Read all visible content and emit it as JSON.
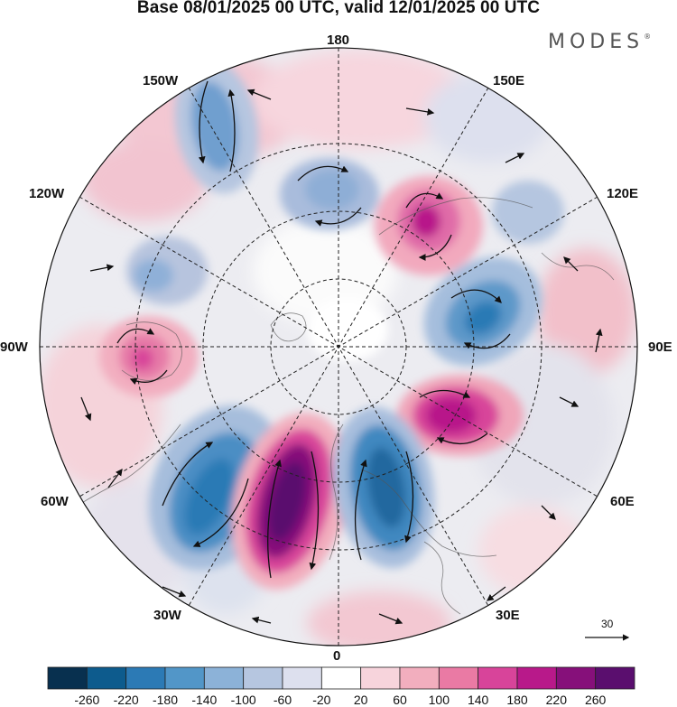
{
  "title": "Base 08/01/2025 00 UTC, valid 12/01/2025 00 UTC",
  "brand": {
    "name": "MODES",
    "mark": "®"
  },
  "map_labels": {
    "north": "180",
    "south": "0",
    "east": "90E",
    "west": "90W",
    "ne_upper": "150E",
    "ne_lower": "120E",
    "nw_upper": "150W",
    "nw_lower": "120W",
    "se_upper": "60E",
    "se_lower": "30E",
    "sw_upper": "60W",
    "sw_lower": "30W"
  },
  "reference_vector": {
    "label": "30"
  },
  "colorbar": {
    "labels": [
      "-260",
      "-220",
      "-180",
      "-140",
      "-100",
      "-60",
      "-20",
      "20",
      "60",
      "100",
      "140",
      "180",
      "220",
      "260"
    ],
    "colors": [
      "#08304f",
      "#0d5b8d",
      "#2c7ab5",
      "#5296c8",
      "#8cb2d8",
      "#b6c6e0",
      "#dde0ee",
      "#ffffff",
      "#f7d4dc",
      "#f2aebe",
      "#ea7aa4",
      "#d8449a",
      "#b8198a",
      "#86107a",
      "#5a0e6e"
    ]
  }
}
